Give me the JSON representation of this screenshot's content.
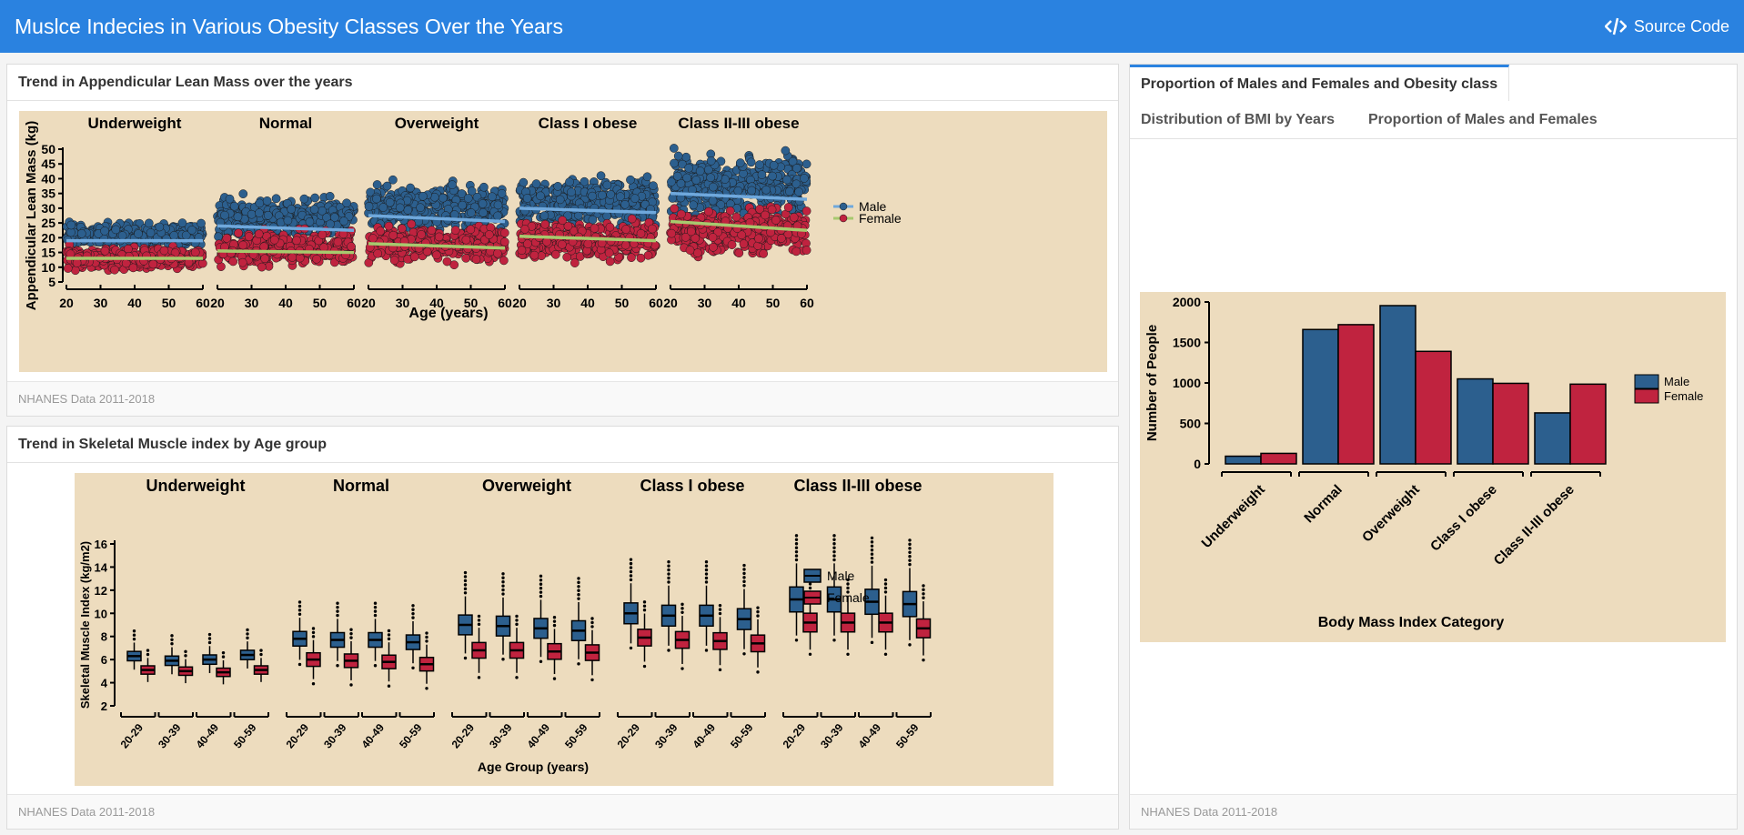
{
  "app": {
    "title": "Muslce Indecies in Various Obesity Classes Over the Years",
    "source_code_label": "Source Code",
    "accent_color": "#2a82e0",
    "plot_background": "#eddcbe",
    "male_color": "#2c5f8e",
    "female_color": "#c0233f"
  },
  "card_alm": {
    "title": "Trend in Appendicular Lean Mass over the years",
    "footer": "NHANES Data 2011-2018"
  },
  "card_smi": {
    "title": "Trend in Skeletal Muscle index by Age group",
    "footer": "NHANES Data 2011-2018"
  },
  "card_right": {
    "tabs": [
      "Proportion of Males and Females and Obesity class",
      "Distribution of BMI by Years",
      "Proportion of Males and Females"
    ],
    "active_tab": 0,
    "footer": "NHANES Data 2011-2018"
  },
  "chart_data": [
    {
      "type": "scatter",
      "panels": [
        "Underweight",
        "Normal",
        "Overweight",
        "Class I obese",
        "Class II-III obese"
      ],
      "xlabel": "Age (years)",
      "ylabel": "Appendicular Lean Mass (kg)",
      "xlim": [
        20,
        60
      ],
      "xticks": [
        20,
        30,
        40,
        50,
        60
      ],
      "ylim": [
        5,
        50
      ],
      "yticks": [
        5,
        10,
        15,
        20,
        25,
        30,
        35,
        40,
        45,
        50
      ],
      "legend_position": "right",
      "series": [
        {
          "name": "Male",
          "point_color": "#2c5f8e",
          "trend_color": "#6fa8dc",
          "trend_lines": [
            [
              19,
              19
            ],
            [
              24,
              22.5
            ],
            [
              27.5,
              25.5
            ],
            [
              30,
              28.5
            ],
            [
              35,
              33
            ]
          ],
          "spread": [
            [
              16,
              26
            ],
            [
              17,
              36
            ],
            [
              19,
              41
            ],
            [
              21,
              43
            ],
            [
              24,
              52
            ]
          ]
        },
        {
          "name": "Female",
          "point_color": "#c0233f",
          "trend_color": "#a7c96e",
          "trend_lines": [
            [
              13,
              13
            ],
            [
              15.5,
              15
            ],
            [
              18,
              16.5
            ],
            [
              20.5,
              19
            ],
            [
              25.5,
              22.5
            ]
          ],
          "spread": [
            [
              8,
              18
            ],
            [
              9,
              24
            ],
            [
              10,
              26
            ],
            [
              11,
              28
            ],
            [
              12,
              32
            ]
          ]
        }
      ]
    },
    {
      "type": "box",
      "panels": [
        "Underweight",
        "Normal",
        "Overweight",
        "Class I obese",
        "Class II-III obese"
      ],
      "categories": [
        "20-29",
        "30-39",
        "40-49",
        "50-59"
      ],
      "xlabel": "Age Group (years)",
      "ylabel": "Skeletal Muscle Index (kg/m2)",
      "ylim": [
        2,
        16
      ],
      "yticks": [
        2,
        4,
        6,
        8,
        10,
        12,
        14,
        16
      ],
      "legend_position": "right",
      "series": [
        {
          "name": "Male",
          "color": "#2c5f8e",
          "medians": [
            [
              6.3,
              5.9,
              6.0,
              6.4
            ],
            [
              7.8,
              7.7,
              7.7,
              7.5
            ],
            [
              9.0,
              8.9,
              8.7,
              8.5
            ],
            [
              10.0,
              9.8,
              9.8,
              9.5
            ],
            [
              11.2,
              11.2,
              11.0,
              10.8
            ]
          ]
        },
        {
          "name": "Female",
          "color": "#c0233f",
          "medians": [
            [
              5.1,
              5.0,
              4.9,
              5.1
            ],
            [
              6.0,
              5.9,
              5.8,
              5.6
            ],
            [
              6.8,
              6.8,
              6.7,
              6.6
            ],
            [
              7.9,
              7.7,
              7.6,
              7.4
            ],
            [
              9.2,
              9.2,
              9.2,
              8.7
            ]
          ]
        }
      ]
    },
    {
      "type": "bar",
      "categories": [
        "Underweight",
        "Normal",
        "Overweight",
        "Class I obese",
        "Class II-III obese"
      ],
      "xlabel": "Body Mass Index Category",
      "ylabel": "Number of People",
      "ylim": [
        0,
        2000
      ],
      "yticks": [
        0,
        500,
        1000,
        1500,
        2000
      ],
      "legend_position": "right",
      "series": [
        {
          "name": "Male",
          "color": "#2c5f8e",
          "values": [
            95,
            1660,
            1955,
            1050,
            630
          ]
        },
        {
          "name": "Female",
          "color": "#c0233f",
          "values": [
            130,
            1720,
            1390,
            995,
            985
          ]
        }
      ]
    }
  ]
}
